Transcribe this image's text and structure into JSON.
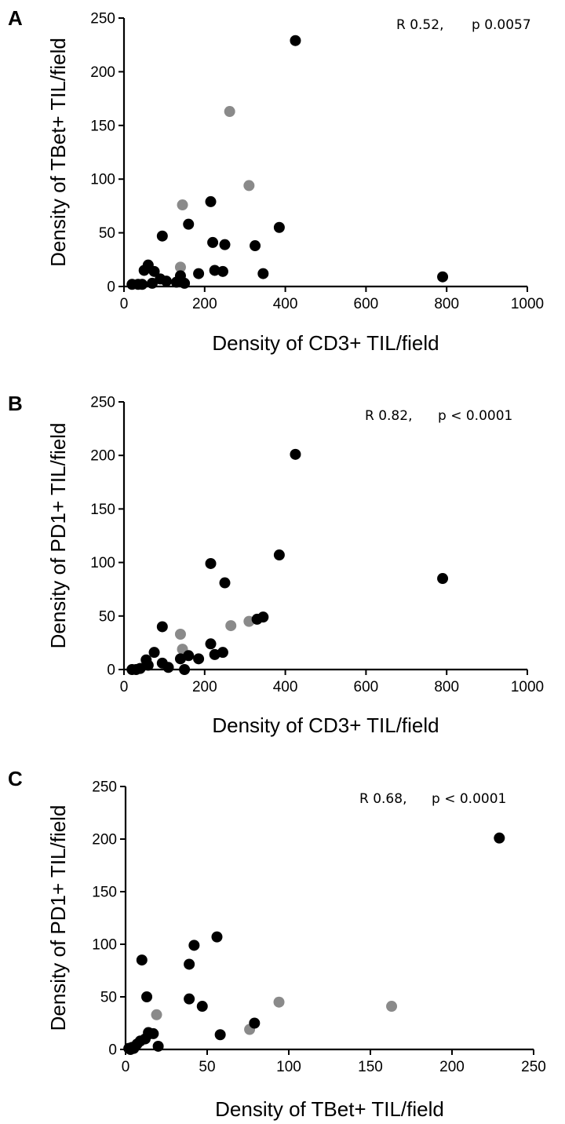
{
  "chart_data": [
    {
      "type": "scatter",
      "panel_label": "A",
      "xlabel": "Density of CD3+ TIL/field",
      "ylabel": "Density of TBet+ TIL/field",
      "xlim": [
        0,
        1000
      ],
      "ylim": [
        0,
        250
      ],
      "xticks": [
        "0",
        "200",
        "400",
        "600",
        "800",
        "1000"
      ],
      "yticks": [
        "0",
        "50",
        "100",
        "150",
        "200",
        "250"
      ],
      "stats": {
        "r_text": "R 0.52,",
        "p_text": "p 0.0057"
      },
      "grid": false,
      "colors": {
        "primary": "#000000",
        "secondary": "#8a8a8a"
      },
      "series": [
        {
          "color": "#000000",
          "points": [
            [
              425,
              229
            ],
            [
              215,
              79
            ],
            [
              160,
              58
            ],
            [
              385,
              55
            ],
            [
              95,
              47
            ],
            [
              220,
              41
            ],
            [
              250,
              39
            ],
            [
              325,
              38
            ],
            [
              60,
              20
            ],
            [
              50,
              15
            ],
            [
              75,
              14
            ],
            [
              225,
              15
            ],
            [
              245,
              14
            ],
            [
              185,
              12
            ],
            [
              345,
              12
            ],
            [
              140,
              10
            ],
            [
              90,
              7
            ],
            [
              105,
              5
            ],
            [
              130,
              4
            ],
            [
              150,
              3
            ],
            [
              20,
              2
            ],
            [
              35,
              2
            ],
            [
              45,
              2
            ],
            [
              70,
              3
            ],
            [
              790,
              9
            ]
          ]
        },
        {
          "color": "#8a8a8a",
          "points": [
            [
              262,
              163
            ],
            [
              310,
              94
            ],
            [
              145,
              76
            ],
            [
              140,
              18
            ]
          ]
        }
      ]
    },
    {
      "type": "scatter",
      "panel_label": "B",
      "xlabel": "Density of CD3+ TIL/field",
      "ylabel": "Density of PD1+ TIL/field",
      "xlim": [
        0,
        1000
      ],
      "ylim": [
        0,
        250
      ],
      "xticks": [
        "0",
        "200",
        "400",
        "600",
        "800",
        "1000"
      ],
      "yticks": [
        "0",
        "50",
        "100",
        "150",
        "200",
        "250"
      ],
      "stats": {
        "r_text": "R 0.82,",
        "p_text": "p < 0.0001"
      },
      "grid": false,
      "colors": {
        "primary": "#000000",
        "secondary": "#8a8a8a"
      },
      "series": [
        {
          "color": "#000000",
          "points": [
            [
              425,
              201
            ],
            [
              385,
              107
            ],
            [
              215,
              99
            ],
            [
              250,
              81
            ],
            [
              790,
              85
            ],
            [
              345,
              49
            ],
            [
              330,
              47
            ],
            [
              95,
              40
            ],
            [
              215,
              24
            ],
            [
              75,
              16
            ],
            [
              245,
              16
            ],
            [
              225,
              14
            ],
            [
              160,
              13
            ],
            [
              185,
              10
            ],
            [
              140,
              10
            ],
            [
              55,
              9
            ],
            [
              95,
              6
            ],
            [
              60,
              4
            ],
            [
              110,
              2
            ],
            [
              40,
              1
            ],
            [
              20,
              0
            ],
            [
              30,
              0
            ],
            [
              150,
              0
            ]
          ]
        },
        {
          "color": "#8a8a8a",
          "points": [
            [
              265,
              41
            ],
            [
              310,
              45
            ],
            [
              140,
              33
            ],
            [
              145,
              19
            ]
          ]
        }
      ]
    },
    {
      "type": "scatter",
      "panel_label": "C",
      "xlabel": "Density of TBet+ TIL/field",
      "ylabel": "Density of PD1+ TIL/field",
      "xlim": [
        0,
        250
      ],
      "ylim": [
        0,
        250
      ],
      "xticks": [
        "0",
        "50",
        "100",
        "150",
        "200",
        "250"
      ],
      "yticks": [
        "0",
        "50",
        "100",
        "150",
        "200",
        "250"
      ],
      "stats": {
        "r_text": "R 0.68,",
        "p_text": "p < 0.0001"
      },
      "grid": false,
      "colors": {
        "primary": "#000000",
        "secondary": "#8a8a8a"
      },
      "series": [
        {
          "color": "#000000",
          "points": [
            [
              229,
              201
            ],
            [
              56,
              107
            ],
            [
              42,
              99
            ],
            [
              10,
              85
            ],
            [
              39,
              81
            ],
            [
              13,
              50
            ],
            [
              39,
              48
            ],
            [
              47,
              41
            ],
            [
              79,
              25
            ],
            [
              58,
              14
            ],
            [
              14,
              16
            ],
            [
              15,
              15
            ],
            [
              17,
              15
            ],
            [
              12,
              10
            ],
            [
              9,
              8
            ],
            [
              7,
              5
            ],
            [
              20,
              3
            ],
            [
              4,
              2
            ],
            [
              2,
              1
            ],
            [
              3,
              0
            ],
            [
              5,
              1
            ]
          ]
        },
        {
          "color": "#8a8a8a",
          "points": [
            [
              94,
              45
            ],
            [
              163,
              41
            ],
            [
              19,
              33
            ],
            [
              76,
              19
            ]
          ]
        }
      ]
    }
  ]
}
